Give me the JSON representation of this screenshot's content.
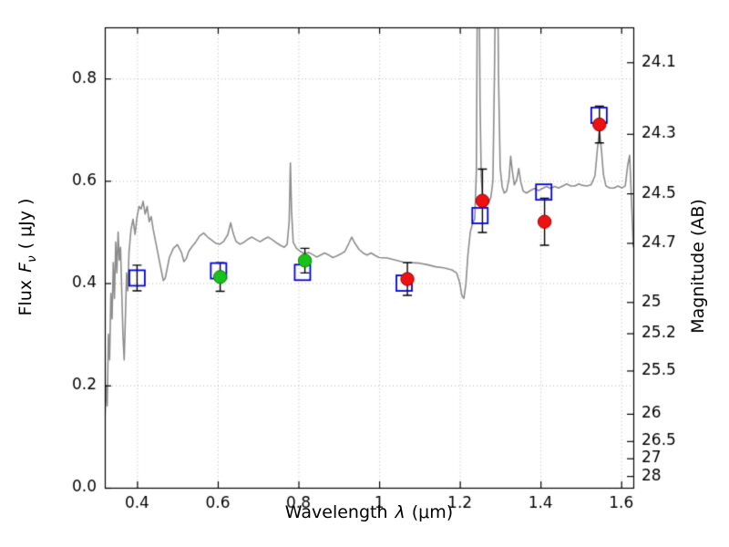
{
  "labels": {
    "xlabel": {
      "text_before": "Wavelength",
      "symbol": "λ",
      "text_after": "(μm)"
    },
    "ylabel_left": {
      "text_before": "Flux",
      "symbol": "F",
      "subscript": "ν",
      "text_after": "( μJy )"
    },
    "ylabel_right": "Magnitude (AB)"
  },
  "chart_data": {
    "type": "line+scatter",
    "title": "",
    "xlabel": "Wavelength λ (μm)",
    "ylabel_left": "Flux Fν ( μJy )",
    "ylabel_right": "Magnitude (AB)",
    "xlim": [
      0.32,
      1.63
    ],
    "ylim_flux": [
      0.0,
      0.9
    ],
    "grid": true,
    "x_ticks": [
      0.4,
      0.6,
      0.8,
      1.0,
      1.2,
      1.4,
      1.6
    ],
    "x_tick_labels": [
      "0.4",
      "0.6",
      "0.8",
      "1",
      "1.2",
      "1.4",
      "1.6"
    ],
    "y_ticks_flux": [
      0.0,
      0.2,
      0.4,
      0.6,
      0.8
    ],
    "y_tick_labels_flux": [
      "0.0",
      "0.2",
      "0.4",
      "0.6",
      "0.8"
    ],
    "y_ticks_mag": [
      24.1,
      24.3,
      24.5,
      24.7,
      25,
      25.2,
      25.5,
      26,
      26.5,
      27,
      28
    ],
    "y_tick_labels_mag": [
      "24.1",
      "24.3",
      "24.5",
      "24.7",
      "25",
      "25.2",
      "25.5",
      "26",
      "26.5",
      "27",
      "28"
    ],
    "mag_zero_point": 23.9,
    "colors": {
      "spectrum": "#8c8c8c",
      "square": "#0000dd",
      "green": "#18c218",
      "green_edge": "#0a7d0a",
      "red": "#ee1111",
      "red_edge": "#990000",
      "errorbar": "#000000",
      "grid": "#b5b5b5",
      "frame": "#000000"
    },
    "series": [
      {
        "name": "model-spectrum",
        "type": "line",
        "points": [
          [
            0.32,
            0.13
          ],
          [
            0.323,
            0.2
          ],
          [
            0.326,
            0.16
          ],
          [
            0.329,
            0.3
          ],
          [
            0.332,
            0.25
          ],
          [
            0.335,
            0.38
          ],
          [
            0.338,
            0.33
          ],
          [
            0.341,
            0.44
          ],
          [
            0.344,
            0.37
          ],
          [
            0.347,
            0.48
          ],
          [
            0.35,
            0.42
          ],
          [
            0.353,
            0.5
          ],
          [
            0.356,
            0.445
          ],
          [
            0.359,
            0.47
          ],
          [
            0.362,
            0.385
          ],
          [
            0.365,
            0.3
          ],
          [
            0.368,
            0.25
          ],
          [
            0.371,
            0.33
          ],
          [
            0.374,
            0.42
          ],
          [
            0.377,
            0.385
          ],
          [
            0.38,
            0.46
          ],
          [
            0.385,
            0.505
          ],
          [
            0.39,
            0.525
          ],
          [
            0.395,
            0.495
          ],
          [
            0.4,
            0.53
          ],
          [
            0.405,
            0.55
          ],
          [
            0.41,
            0.545
          ],
          [
            0.415,
            0.56
          ],
          [
            0.42,
            0.535
          ],
          [
            0.425,
            0.55
          ],
          [
            0.43,
            0.52
          ],
          [
            0.435,
            0.53
          ],
          [
            0.44,
            0.505
          ],
          [
            0.445,
            0.485
          ],
          [
            0.45,
            0.465
          ],
          [
            0.455,
            0.445
          ],
          [
            0.46,
            0.425
          ],
          [
            0.465,
            0.405
          ],
          [
            0.47,
            0.41
          ],
          [
            0.475,
            0.43
          ],
          [
            0.48,
            0.45
          ],
          [
            0.49,
            0.468
          ],
          [
            0.5,
            0.475
          ],
          [
            0.51,
            0.46
          ],
          [
            0.516,
            0.442
          ],
          [
            0.522,
            0.448
          ],
          [
            0.528,
            0.462
          ],
          [
            0.535,
            0.47
          ],
          [
            0.545,
            0.48
          ],
          [
            0.555,
            0.492
          ],
          [
            0.565,
            0.498
          ],
          [
            0.575,
            0.49
          ],
          [
            0.585,
            0.484
          ],
          [
            0.595,
            0.478
          ],
          [
            0.605,
            0.476
          ],
          [
            0.615,
            0.482
          ],
          [
            0.625,
            0.495
          ],
          [
            0.632,
            0.518
          ],
          [
            0.638,
            0.498
          ],
          [
            0.645,
            0.482
          ],
          [
            0.655,
            0.476
          ],
          [
            0.665,
            0.48
          ],
          [
            0.675,
            0.486
          ],
          [
            0.685,
            0.49
          ],
          [
            0.695,
            0.485
          ],
          [
            0.705,
            0.481
          ],
          [
            0.715,
            0.486
          ],
          [
            0.725,
            0.49
          ],
          [
            0.735,
            0.485
          ],
          [
            0.745,
            0.479
          ],
          [
            0.755,
            0.474
          ],
          [
            0.765,
            0.47
          ],
          [
            0.772,
            0.476
          ],
          [
            0.777,
            0.52
          ],
          [
            0.78,
            0.635
          ],
          [
            0.783,
            0.54
          ],
          [
            0.787,
            0.48
          ],
          [
            0.795,
            0.468
          ],
          [
            0.805,
            0.462
          ],
          [
            0.815,
            0.457
          ],
          [
            0.825,
            0.46
          ],
          [
            0.835,
            0.456
          ],
          [
            0.845,
            0.451
          ],
          [
            0.855,
            0.455
          ],
          [
            0.865,
            0.459
          ],
          [
            0.875,
            0.455
          ],
          [
            0.885,
            0.45
          ],
          [
            0.895,
            0.453
          ],
          [
            0.905,
            0.457
          ],
          [
            0.915,
            0.462
          ],
          [
            0.925,
            0.478
          ],
          [
            0.932,
            0.49
          ],
          [
            0.94,
            0.478
          ],
          [
            0.95,
            0.466
          ],
          [
            0.96,
            0.459
          ],
          [
            0.97,
            0.455
          ],
          [
            0.98,
            0.459
          ],
          [
            0.99,
            0.454
          ],
          [
            1.0,
            0.45
          ],
          [
            1.02,
            0.449
          ],
          [
            1.04,
            0.445
          ],
          [
            1.06,
            0.441
          ],
          [
            1.08,
            0.44
          ],
          [
            1.1,
            0.439
          ],
          [
            1.12,
            0.436
          ],
          [
            1.14,
            0.432
          ],
          [
            1.16,
            0.43
          ],
          [
            1.18,
            0.426
          ],
          [
            1.192,
            0.42
          ],
          [
            1.2,
            0.4
          ],
          [
            1.205,
            0.376
          ],
          [
            1.21,
            0.37
          ],
          [
            1.215,
            0.398
          ],
          [
            1.22,
            0.455
          ],
          [
            1.226,
            0.5
          ],
          [
            1.232,
            0.518
          ],
          [
            1.237,
            0.525
          ],
          [
            1.241,
            0.62
          ],
          [
            1.244,
            1.05
          ],
          [
            1.247,
            1.1
          ],
          [
            1.25,
            0.76
          ],
          [
            1.253,
            0.61
          ],
          [
            1.257,
            0.562
          ],
          [
            1.262,
            0.548
          ],
          [
            1.267,
            0.552
          ],
          [
            1.272,
            0.558
          ],
          [
            1.277,
            0.568
          ],
          [
            1.282,
            0.6
          ],
          [
            1.286,
            0.82
          ],
          [
            1.29,
            1.1
          ],
          [
            1.293,
            1.06
          ],
          [
            1.296,
            0.8
          ],
          [
            1.3,
            0.625
          ],
          [
            1.305,
            0.588
          ],
          [
            1.31,
            0.576
          ],
          [
            1.316,
            0.58
          ],
          [
            1.322,
            0.605
          ],
          [
            1.326,
            0.648
          ],
          [
            1.33,
            0.62
          ],
          [
            1.335,
            0.592
          ],
          [
            1.341,
            0.602
          ],
          [
            1.346,
            0.624
          ],
          [
            1.351,
            0.598
          ],
          [
            1.357,
            0.58
          ],
          [
            1.365,
            0.576
          ],
          [
            1.375,
            0.581
          ],
          [
            1.385,
            0.585
          ],
          [
            1.395,
            0.581
          ],
          [
            1.405,
            0.585
          ],
          [
            1.415,
            0.589
          ],
          [
            1.425,
            0.585
          ],
          [
            1.435,
            0.589
          ],
          [
            1.445,
            0.586
          ],
          [
            1.455,
            0.59
          ],
          [
            1.465,
            0.594
          ],
          [
            1.475,
            0.59
          ],
          [
            1.485,
            0.59
          ],
          [
            1.495,
            0.594
          ],
          [
            1.505,
            0.591
          ],
          [
            1.515,
            0.59
          ],
          [
            1.525,
            0.592
          ],
          [
            1.535,
            0.61
          ],
          [
            1.541,
            0.662
          ],
          [
            1.546,
            0.7
          ],
          [
            1.551,
            0.66
          ],
          [
            1.556,
            0.612
          ],
          [
            1.562,
            0.59
          ],
          [
            1.572,
            0.586
          ],
          [
            1.582,
            0.586
          ],
          [
            1.592,
            0.59
          ],
          [
            1.602,
            0.586
          ],
          [
            1.61,
            0.59
          ],
          [
            1.616,
            0.63
          ],
          [
            1.621,
            0.65
          ],
          [
            1.626,
            0.55
          ],
          [
            1.63,
            0.47
          ]
        ]
      },
      {
        "name": "photometry-model-squares",
        "type": "scatter",
        "marker": "open-square",
        "points": [
          {
            "x": 0.4,
            "y": 0.41,
            "yerr": 0.025
          },
          {
            "x": 0.602,
            "y": 0.424
          },
          {
            "x": 0.81,
            "y": 0.421
          },
          {
            "x": 1.062,
            "y": 0.4
          },
          {
            "x": 1.25,
            "y": 0.532
          },
          {
            "x": 1.408,
            "y": 0.578
          },
          {
            "x": 1.545,
            "y": 0.728
          }
        ]
      },
      {
        "name": "photometry-observed-green",
        "type": "scatter",
        "marker": "filled-circle-green",
        "points": [
          {
            "x": 0.606,
            "y": 0.412,
            "yerr": 0.028
          },
          {
            "x": 0.816,
            "y": 0.444,
            "yerr": 0.024
          }
        ]
      },
      {
        "name": "photometry-observed-red",
        "type": "scatter",
        "marker": "filled-circle-red",
        "points": [
          {
            "x": 1.07,
            "y": 0.408,
            "yerr": 0.032
          },
          {
            "x": 1.256,
            "y": 0.561,
            "yerr": 0.062
          },
          {
            "x": 1.41,
            "y": 0.52,
            "yerr": 0.046
          },
          {
            "x": 1.546,
            "y": 0.71,
            "yerr": 0.036
          }
        ]
      }
    ]
  }
}
